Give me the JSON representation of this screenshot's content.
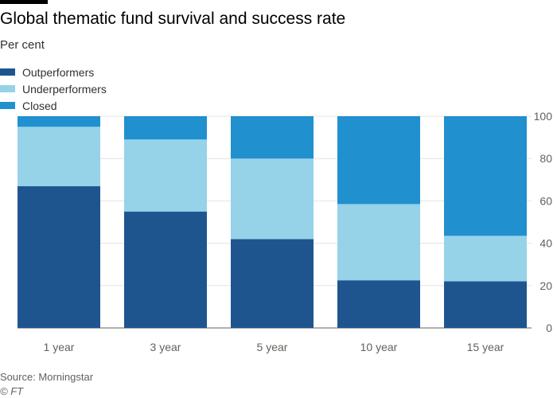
{
  "header": {
    "title": "Global thematic fund survival and success rate",
    "subtitle": "Per cent"
  },
  "legend": {
    "items": [
      {
        "label": "Outperformers",
        "color": "#1f558f"
      },
      {
        "label": "Underperformers",
        "color": "#96d2e8"
      },
      {
        "label": "Closed",
        "color": "#2190cf"
      }
    ]
  },
  "footer": {
    "source": "Source: Morningstar",
    "copyright": "© FT"
  },
  "chart_data": {
    "type": "bar",
    "stacked": true,
    "categories": [
      "1 year",
      "3 year",
      "5 year",
      "10 year",
      "15 year"
    ],
    "series": [
      {
        "name": "Outperformers",
        "values": [
          67,
          55,
          42,
          22.5,
          22
        ],
        "color": "#1f558f"
      },
      {
        "name": "Underperformers",
        "values": [
          28,
          34,
          38,
          36,
          21.5
        ],
        "color": "#96d2e8"
      },
      {
        "name": "Closed",
        "values": [
          5,
          11,
          20,
          41.5,
          56.5
        ],
        "color": "#2190cf"
      }
    ],
    "ylim": [
      0,
      100
    ],
    "yticks": [
      0,
      20,
      40,
      60,
      80,
      100
    ],
    "y_axis_position": "right",
    "grid": true
  }
}
